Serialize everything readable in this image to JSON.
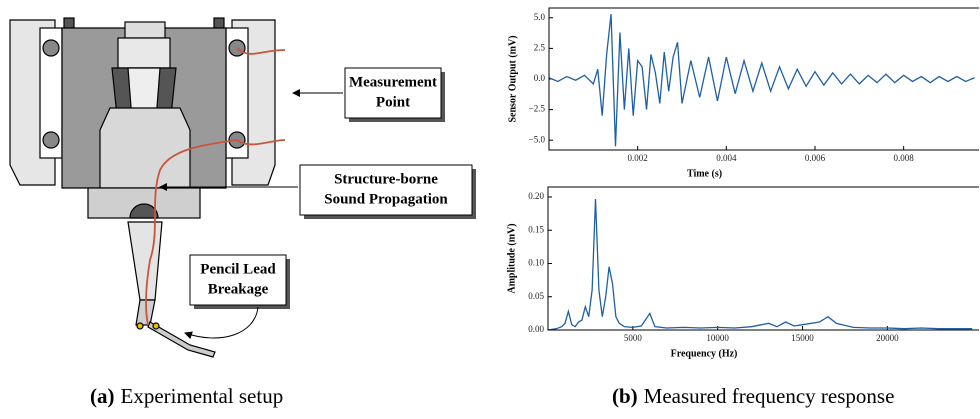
{
  "panels": {
    "a": {
      "label": "(a)",
      "caption": "Experimental setup",
      "callouts": {
        "measurement_point": [
          "Measurement",
          "Point"
        ],
        "sound_propagation": [
          "Structure-borne",
          "Sound Propagation"
        ],
        "pencil_lead": [
          "Pencil Lead",
          "Breakage"
        ]
      }
    },
    "b": {
      "label": "(b)",
      "caption": "Measured frequency response"
    }
  },
  "chart_data": [
    {
      "type": "line",
      "xlabel": "Time (s)",
      "ylabel": "Sensor Output (mV)",
      "xlim": [
        0,
        0.0097
      ],
      "ylim": [
        -5.8,
        5.8
      ],
      "xticks": [
        0.002,
        0.004,
        0.006,
        0.008
      ],
      "yticks": [
        {
          "value": -5,
          "label": "−5.0"
        },
        {
          "value": -2.5,
          "label": "−2.5"
        },
        {
          "value": 0,
          "label": "0.0"
        },
        {
          "value": 2.5,
          "label": "2.5"
        },
        {
          "value": 5,
          "label": "5.0"
        }
      ],
      "x": [
        0,
        0.0002,
        0.0004,
        0.0006,
        0.0008,
        0.001,
        0.0011,
        0.0012,
        0.0013,
        0.0014,
        0.0015,
        0.0016,
        0.0017,
        0.0018,
        0.0019,
        0.002,
        0.0021,
        0.0022,
        0.0023,
        0.0024,
        0.0025,
        0.0026,
        0.0027,
        0.0028,
        0.0029,
        0.003,
        0.0032,
        0.0034,
        0.0036,
        0.0038,
        0.004,
        0.0042,
        0.0044,
        0.0046,
        0.0048,
        0.005,
        0.0052,
        0.0054,
        0.0056,
        0.0058,
        0.006,
        0.0062,
        0.0064,
        0.0066,
        0.0068,
        0.007,
        0.0072,
        0.0074,
        0.0076,
        0.0078,
        0.008,
        0.0082,
        0.0084,
        0.0086,
        0.0088,
        0.009,
        0.0092,
        0.0094,
        0.0096
      ],
      "series": [
        {
          "color": "#1f5fa6",
          "values": [
            0.1,
            -0.2,
            0.2,
            -0.1,
            0.3,
            -0.4,
            0.8,
            -3.0,
            2.0,
            5.3,
            -5.5,
            3.8,
            -2.5,
            2.5,
            -3.0,
            1.5,
            1.0,
            -2.5,
            2.0,
            0.5,
            -2.0,
            2.2,
            -1.0,
            1.8,
            3.0,
            -2.0,
            1.5,
            -1.5,
            1.8,
            -1.8,
            1.8,
            -1.2,
            1.5,
            -1.0,
            1.3,
            -1.0,
            1.0,
            -0.8,
            0.8,
            -0.6,
            0.6,
            -0.5,
            0.5,
            -0.4,
            0.4,
            -0.4,
            0.3,
            -0.3,
            0.4,
            -0.3,
            0.3,
            -0.2,
            0.2,
            -0.3,
            0.2,
            -0.2,
            0.2,
            -0.2,
            0.1
          ]
        }
      ]
    },
    {
      "type": "line",
      "xlabel": "Frequency (Hz)",
      "ylabel": "Amplitude (mV)",
      "xlim": [
        0,
        25400
      ],
      "ylim": [
        0,
        0.215
      ],
      "xticks": [
        5000,
        10000,
        15000,
        20000
      ],
      "yticks": [
        {
          "value": 0,
          "label": "0.00"
        },
        {
          "value": 0.05,
          "label": "0.05"
        },
        {
          "value": 0.1,
          "label": "0.10"
        },
        {
          "value": 0.15,
          "label": "0.15"
        },
        {
          "value": 0.2,
          "label": "0.20"
        }
      ],
      "x": [
        0,
        500,
        800,
        1000,
        1200,
        1400,
        1600,
        1800,
        2000,
        2200,
        2400,
        2600,
        2800,
        3000,
        3200,
        3400,
        3600,
        3800,
        4000,
        4200,
        4500,
        5000,
        5500,
        6000,
        6300,
        7000,
        8000,
        9000,
        10000,
        11000,
        12000,
        13000,
        13500,
        14000,
        14500,
        15000,
        16000,
        16500,
        17000,
        18000,
        19000,
        20000,
        21000,
        22000,
        23000,
        24000,
        25000
      ],
      "series": [
        {
          "color": "#1f5fa6",
          "values": [
            0.0,
            0.002,
            0.005,
            0.01,
            0.028,
            0.008,
            0.005,
            0.012,
            0.015,
            0.035,
            0.02,
            0.06,
            0.197,
            0.06,
            0.02,
            0.05,
            0.095,
            0.07,
            0.02,
            0.01,
            0.005,
            0.004,
            0.006,
            0.025,
            0.005,
            0.003,
            0.004,
            0.003,
            0.004,
            0.003,
            0.005,
            0.01,
            0.005,
            0.012,
            0.006,
            0.008,
            0.012,
            0.02,
            0.01,
            0.004,
            0.003,
            0.003,
            0.002,
            0.003,
            0.002,
            0.002,
            0.002
          ]
        }
      ]
    }
  ]
}
